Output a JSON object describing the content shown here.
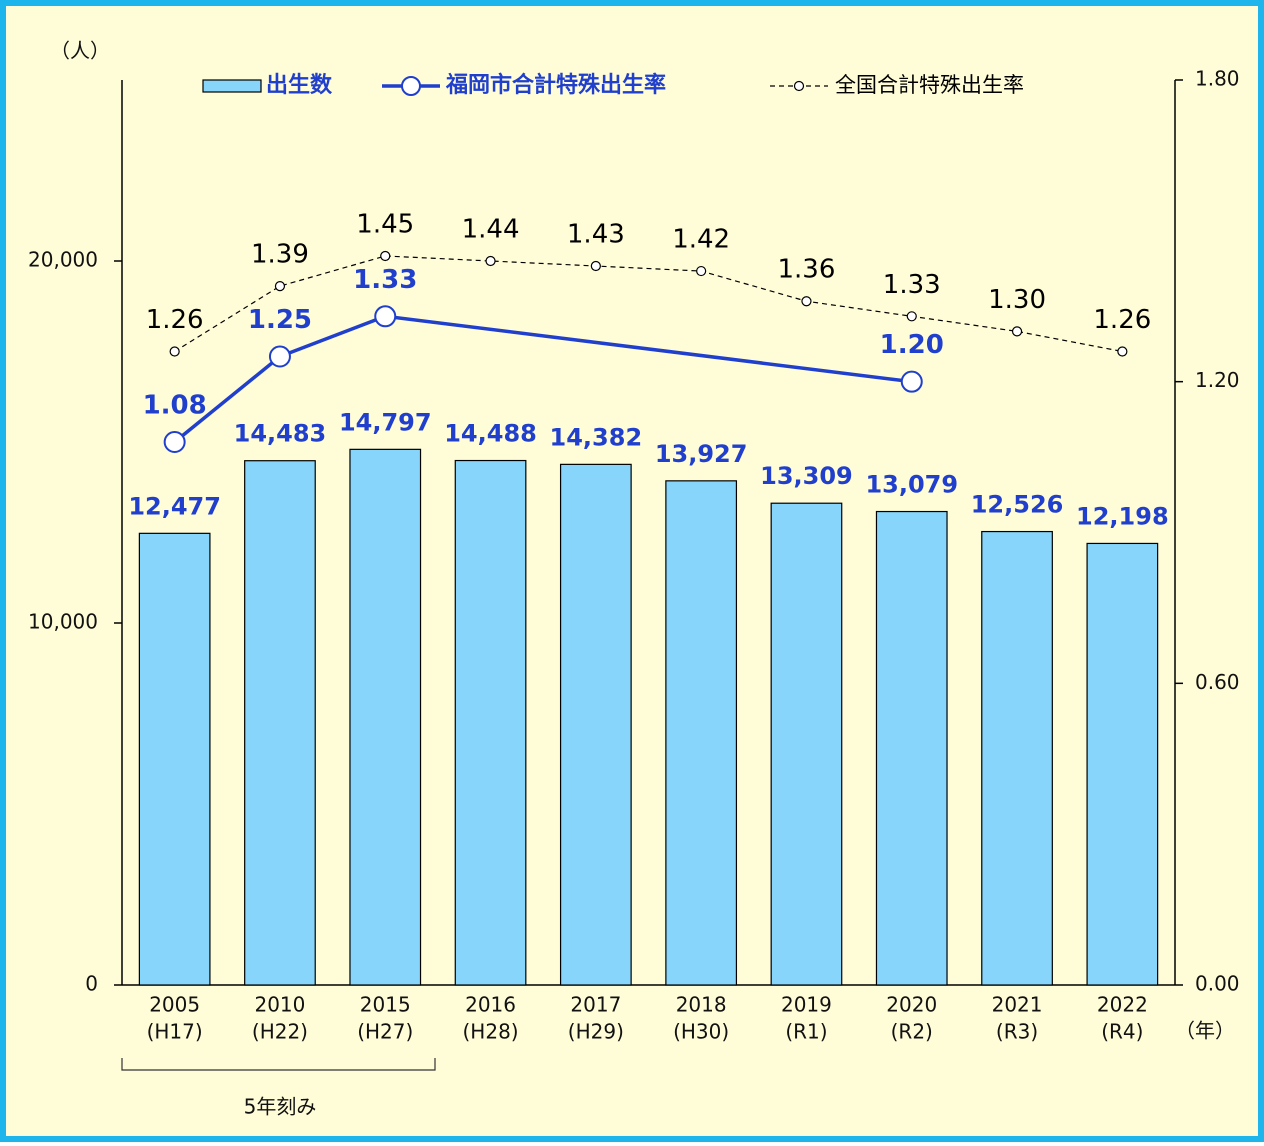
{
  "chart_data": {
    "type": "bar-line",
    "y_unit_label": "（人）",
    "x_unit_label": "（年）",
    "bracket_label": "5年刻み",
    "categories": [
      "2005",
      "2010",
      "2015",
      "2016",
      "2017",
      "2018",
      "2019",
      "2020",
      "2021",
      "2022"
    ],
    "category_sublabels": [
      "(H17)",
      "(H22)",
      "(H27)",
      "(H28)",
      "(H29)",
      "(H30)",
      "(R1)",
      "(R2)",
      "(R3)",
      "(R4)"
    ],
    "ylim": [
      0,
      25000
    ],
    "yticks": [
      0,
      {
        "value": 10000,
        "label": "10,000"
      },
      {
        "value": 20000,
        "label": "20,000"
      }
    ],
    "y2lim": [
      0,
      1.8
    ],
    "y2ticks": [
      {
        "value": 0,
        "label": "0.00"
      },
      {
        "value": 0.6,
        "label": "0.60"
      },
      {
        "value": 1.2,
        "label": "1.20"
      },
      {
        "value": 1.8,
        "label": "1.80"
      }
    ],
    "grid": false,
    "series": [
      {
        "name": "出生数",
        "type": "bar",
        "color": "#87d5fb",
        "values": [
          12477,
          14483,
          14797,
          14488,
          14382,
          13927,
          13309,
          13079,
          12526,
          12198
        ],
        "value_labels": [
          "12,477",
          "14,483",
          "14,797",
          "14,488",
          "14,382",
          "13,927",
          "13,309",
          "13,079",
          "12,526",
          "12,198"
        ]
      },
      {
        "name": "福岡市合計特殊出生率",
        "type": "line",
        "axis": "y2",
        "color": "#1f3fcc",
        "connect_gaps": true,
        "values": [
          1.08,
          1.25,
          1.33,
          null,
          null,
          null,
          null,
          1.2,
          null,
          null
        ],
        "value_labels": [
          "1.08",
          "1.25",
          "1.33",
          null,
          null,
          null,
          null,
          "1.20",
          null,
          null
        ]
      },
      {
        "name": "全国合計特殊出生率",
        "type": "line",
        "axis": "y2",
        "color": "#000000",
        "dashed": true,
        "values": [
          1.26,
          1.39,
          1.45,
          1.44,
          1.43,
          1.42,
          1.36,
          1.33,
          1.3,
          1.26
        ],
        "value_labels": [
          "1.26",
          "1.39",
          "1.45",
          "1.44",
          "1.43",
          "1.42",
          "1.36",
          "1.33",
          "1.30",
          "1.26"
        ]
      }
    ]
  }
}
